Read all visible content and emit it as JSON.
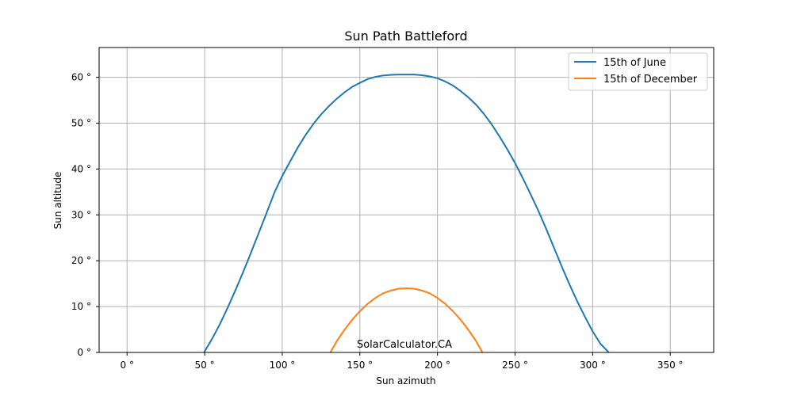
{
  "chart_data": {
    "type": "line",
    "title": "Sun Path Battleford",
    "xlabel": "Sun azimuth",
    "ylabel": "Sun altitude",
    "xlim": [
      -18,
      378
    ],
    "ylim": [
      0,
      66.5
    ],
    "xticks": [
      0,
      50,
      100,
      150,
      200,
      250,
      300,
      350
    ],
    "xtick_labels": [
      "0 °",
      "50 °",
      "100 °",
      "150 °",
      "200 °",
      "250 °",
      "300 °",
      "350 °"
    ],
    "yticks": [
      0,
      10,
      20,
      30,
      40,
      50,
      60
    ],
    "ytick_labels": [
      "0 °",
      "10 °",
      "20 °",
      "30 °",
      "40 °",
      "50 °",
      "60 °"
    ],
    "grid": true,
    "legend_position": "top-right",
    "annotation": "SolarCalculator.CA",
    "series": [
      {
        "name": "15th of June",
        "color": "#1f77b4",
        "x": [
          49.6,
          55,
          60,
          65,
          70,
          75,
          80,
          85,
          90,
          95,
          100,
          105,
          110,
          115,
          120,
          125,
          130,
          135,
          140,
          145,
          150,
          155,
          160,
          165,
          170,
          175,
          180,
          185,
          190,
          195,
          200,
          205,
          210,
          215,
          220,
          225,
          230,
          235,
          240,
          245,
          250,
          255,
          260,
          265,
          270,
          275,
          280,
          285,
          290,
          295,
          300,
          305,
          310.4
        ],
        "y": [
          0,
          3.1,
          6.3,
          9.9,
          13.7,
          17.7,
          21.9,
          26.2,
          30.5,
          34.9,
          38.5,
          41.6,
          44.7,
          47.4,
          49.8,
          51.9,
          53.7,
          55.3,
          56.7,
          57.9,
          58.8,
          59.6,
          60.1,
          60.4,
          60.55,
          60.6,
          60.6,
          60.6,
          60.45,
          60.2,
          59.8,
          59.1,
          58.2,
          57.0,
          55.6,
          54.0,
          52.0,
          49.7,
          47.1,
          44.3,
          41.3,
          38.0,
          34.5,
          30.9,
          27.0,
          22.9,
          18.8,
          14.9,
          11.2,
          7.8,
          4.6,
          1.9,
          0
        ]
      },
      {
        "name": "15th of December",
        "color": "#ff7f0e",
        "x": [
          131.0,
          135,
          140,
          145,
          150,
          155,
          160,
          165,
          170,
          175,
          180,
          185,
          190,
          195,
          200,
          205,
          210,
          215,
          220,
          225,
          229.0
        ],
        "y": [
          0,
          2.4,
          4.9,
          7.1,
          9.0,
          10.6,
          11.9,
          12.9,
          13.5,
          13.9,
          14.0,
          13.9,
          13.5,
          12.9,
          11.9,
          10.6,
          9.0,
          7.1,
          4.9,
          2.4,
          0
        ]
      }
    ]
  }
}
